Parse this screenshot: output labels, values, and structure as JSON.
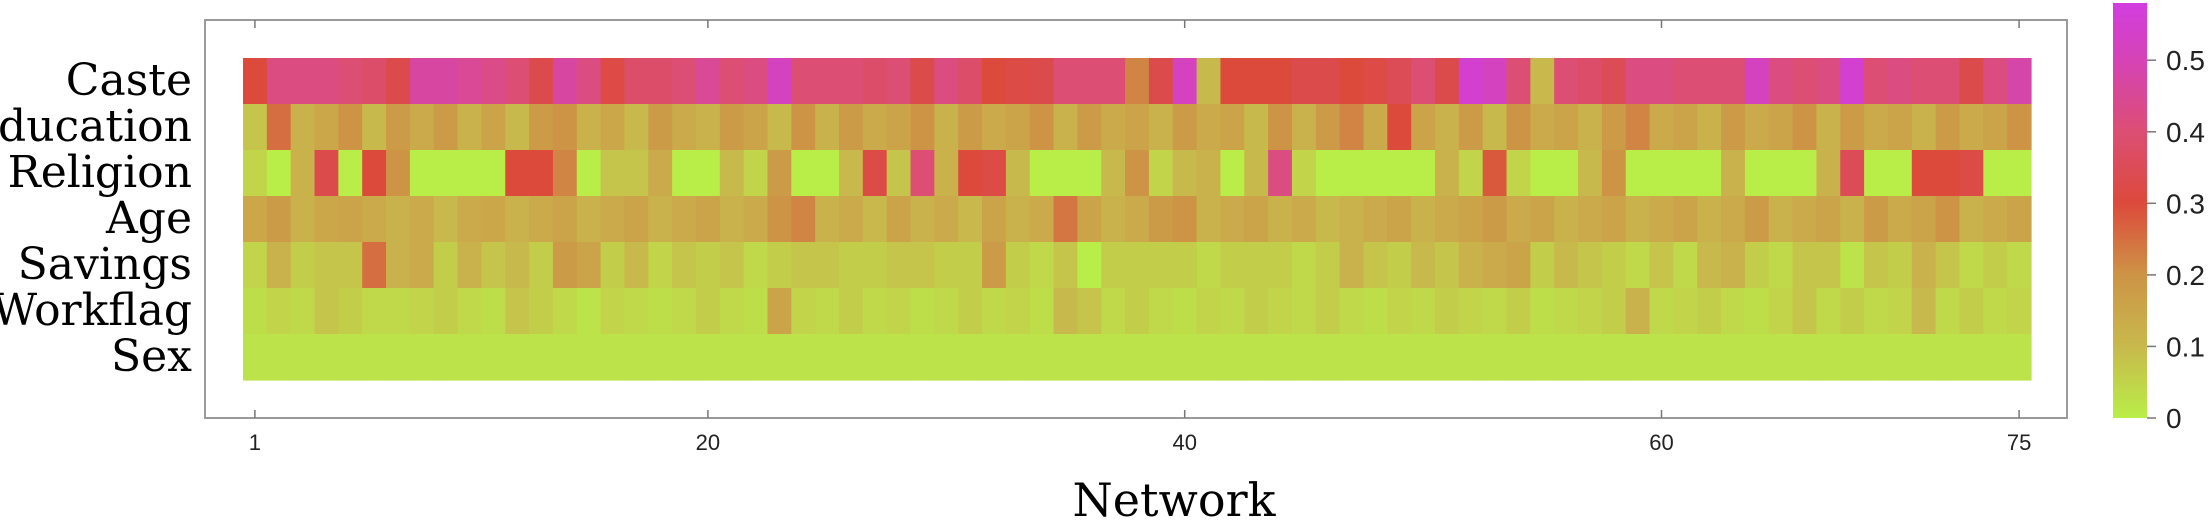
{
  "chart_data": {
    "type": "heatmap",
    "title": "",
    "xlabel": "Network",
    "ylabel": "",
    "rows": [
      "Caste",
      "Education",
      "Religion",
      "Age",
      "Savings",
      "Workflag",
      "Sex"
    ],
    "x_ticks": [
      1,
      20,
      40,
      60,
      75
    ],
    "x_range": [
      1,
      75
    ],
    "value_range": [
      0,
      0.58
    ],
    "colorbar_ticks": [
      0,
      0.1,
      0.2,
      0.3,
      0.4,
      0.5
    ],
    "colorbar_tick_labels": [
      "0",
      "0.1",
      "0.2",
      "0.3",
      "0.4",
      "0.5"
    ],
    "colormap_stops": [
      {
        "v": 0.0,
        "color": "#b9ee48"
      },
      {
        "v": 0.1,
        "color": "#c8b94c"
      },
      {
        "v": 0.2,
        "color": "#cd9446"
      },
      {
        "v": 0.3,
        "color": "#dc4a3b"
      },
      {
        "v": 0.4,
        "color": "#dc4e74"
      },
      {
        "v": 0.5,
        "color": "#d543b5"
      },
      {
        "v": 0.58,
        "color": "#d23ee0"
      }
    ],
    "values": [
      [
        0.3,
        0.42,
        0.42,
        0.42,
        0.4,
        0.38,
        0.33,
        0.47,
        0.47,
        0.45,
        0.43,
        0.4,
        0.33,
        0.47,
        0.42,
        0.32,
        0.38,
        0.38,
        0.4,
        0.45,
        0.4,
        0.42,
        0.52,
        0.4,
        0.4,
        0.4,
        0.38,
        0.4,
        0.33,
        0.42,
        0.38,
        0.3,
        0.32,
        0.33,
        0.4,
        0.4,
        0.4,
        0.22,
        0.33,
        0.52,
        0.1,
        0.3,
        0.3,
        0.3,
        0.33,
        0.33,
        0.3,
        0.32,
        0.35,
        0.4,
        0.33,
        0.55,
        0.52,
        0.4,
        0.1,
        0.4,
        0.38,
        0.35,
        0.42,
        0.42,
        0.4,
        0.4,
        0.4,
        0.52,
        0.42,
        0.4,
        0.42,
        0.55,
        0.4,
        0.42,
        0.4,
        0.4,
        0.33,
        0.42,
        0.48
      ],
      [
        0.08,
        0.25,
        0.12,
        0.15,
        0.2,
        0.1,
        0.18,
        0.14,
        0.18,
        0.12,
        0.16,
        0.1,
        0.18,
        0.2,
        0.12,
        0.15,
        0.1,
        0.18,
        0.14,
        0.12,
        0.18,
        0.16,
        0.1,
        0.2,
        0.12,
        0.18,
        0.14,
        0.16,
        0.2,
        0.12,
        0.18,
        0.14,
        0.16,
        0.2,
        0.12,
        0.18,
        0.14,
        0.16,
        0.12,
        0.18,
        0.14,
        0.16,
        0.1,
        0.2,
        0.12,
        0.18,
        0.22,
        0.14,
        0.3,
        0.16,
        0.12,
        0.18,
        0.1,
        0.2,
        0.14,
        0.16,
        0.12,
        0.18,
        0.22,
        0.14,
        0.16,
        0.12,
        0.18,
        0.14,
        0.16,
        0.2,
        0.12,
        0.18,
        0.14,
        0.16,
        0.12,
        0.18,
        0.14,
        0.16,
        0.2
      ],
      [
        0.05,
        0.0,
        0.12,
        0.33,
        0.0,
        0.3,
        0.2,
        0.0,
        0.0,
        0.0,
        0.0,
        0.3,
        0.3,
        0.22,
        0.0,
        0.08,
        0.08,
        0.14,
        0.0,
        0.0,
        0.1,
        0.05,
        0.18,
        0.0,
        0.0,
        0.1,
        0.32,
        0.08,
        0.4,
        0.12,
        0.3,
        0.32,
        0.1,
        0.0,
        0.0,
        0.0,
        0.1,
        0.2,
        0.05,
        0.1,
        0.12,
        0.0,
        0.1,
        0.42,
        0.05,
        0.0,
        0.0,
        0.0,
        0.0,
        0.0,
        0.12,
        0.05,
        0.28,
        0.05,
        0.0,
        0.0,
        0.1,
        0.2,
        0.0,
        0.0,
        0.0,
        0.0,
        0.12,
        0.0,
        0.0,
        0.0,
        0.12,
        0.35,
        0.0,
        0.0,
        0.3,
        0.3,
        0.32,
        0.0,
        0.0
      ],
      [
        0.15,
        0.18,
        0.12,
        0.15,
        0.16,
        0.14,
        0.12,
        0.14,
        0.1,
        0.14,
        0.15,
        0.12,
        0.14,
        0.16,
        0.12,
        0.14,
        0.16,
        0.12,
        0.14,
        0.16,
        0.12,
        0.14,
        0.2,
        0.22,
        0.12,
        0.14,
        0.1,
        0.16,
        0.12,
        0.14,
        0.1,
        0.16,
        0.12,
        0.14,
        0.24,
        0.16,
        0.12,
        0.14,
        0.18,
        0.2,
        0.12,
        0.14,
        0.16,
        0.12,
        0.14,
        0.1,
        0.12,
        0.14,
        0.16,
        0.12,
        0.14,
        0.16,
        0.18,
        0.14,
        0.16,
        0.12,
        0.14,
        0.16,
        0.12,
        0.14,
        0.16,
        0.12,
        0.14,
        0.18,
        0.12,
        0.14,
        0.16,
        0.12,
        0.18,
        0.14,
        0.16,
        0.2,
        0.12,
        0.14,
        0.16
      ],
      [
        0.05,
        0.12,
        0.06,
        0.08,
        0.08,
        0.25,
        0.12,
        0.14,
        0.06,
        0.12,
        0.08,
        0.1,
        0.06,
        0.18,
        0.16,
        0.06,
        0.1,
        0.05,
        0.08,
        0.06,
        0.08,
        0.04,
        0.06,
        0.08,
        0.08,
        0.06,
        0.06,
        0.08,
        0.08,
        0.06,
        0.06,
        0.18,
        0.06,
        0.04,
        0.08,
        0.0,
        0.06,
        0.06,
        0.06,
        0.06,
        0.04,
        0.06,
        0.06,
        0.06,
        0.04,
        0.06,
        0.12,
        0.08,
        0.06,
        0.1,
        0.08,
        0.12,
        0.14,
        0.16,
        0.06,
        0.1,
        0.08,
        0.06,
        0.04,
        0.08,
        0.04,
        0.1,
        0.12,
        0.06,
        0.04,
        0.08,
        0.08,
        0.02,
        0.08,
        0.06,
        0.12,
        0.08,
        0.04,
        0.06,
        0.04
      ],
      [
        0.03,
        0.05,
        0.04,
        0.08,
        0.06,
        0.04,
        0.04,
        0.05,
        0.06,
        0.04,
        0.03,
        0.08,
        0.06,
        0.04,
        0.02,
        0.05,
        0.04,
        0.03,
        0.04,
        0.06,
        0.04,
        0.03,
        0.16,
        0.05,
        0.04,
        0.06,
        0.04,
        0.05,
        0.03,
        0.04,
        0.06,
        0.04,
        0.05,
        0.03,
        0.1,
        0.08,
        0.04,
        0.06,
        0.04,
        0.03,
        0.05,
        0.04,
        0.06,
        0.05,
        0.04,
        0.06,
        0.04,
        0.03,
        0.05,
        0.04,
        0.06,
        0.05,
        0.04,
        0.06,
        0.03,
        0.04,
        0.05,
        0.06,
        0.12,
        0.04,
        0.05,
        0.06,
        0.04,
        0.03,
        0.05,
        0.08,
        0.04,
        0.06,
        0.04,
        0.05,
        0.1,
        0.04,
        0.06,
        0.04,
        0.05
      ],
      [
        0.02,
        0.02,
        0.02,
        0.02,
        0.02,
        0.02,
        0.02,
        0.02,
        0.02,
        0.02,
        0.02,
        0.02,
        0.02,
        0.02,
        0.02,
        0.02,
        0.02,
        0.02,
        0.02,
        0.02,
        0.02,
        0.02,
        0.02,
        0.02,
        0.02,
        0.02,
        0.02,
        0.02,
        0.02,
        0.02,
        0.02,
        0.02,
        0.02,
        0.02,
        0.02,
        0.02,
        0.02,
        0.02,
        0.02,
        0.02,
        0.02,
        0.02,
        0.02,
        0.02,
        0.02,
        0.02,
        0.02,
        0.02,
        0.02,
        0.02,
        0.02,
        0.02,
        0.02,
        0.02,
        0.02,
        0.02,
        0.02,
        0.02,
        0.02,
        0.02,
        0.02,
        0.02,
        0.02,
        0.02,
        0.02,
        0.02,
        0.02,
        0.02,
        0.02,
        0.02,
        0.02,
        0.02,
        0.02,
        0.02,
        0.02
      ]
    ]
  }
}
